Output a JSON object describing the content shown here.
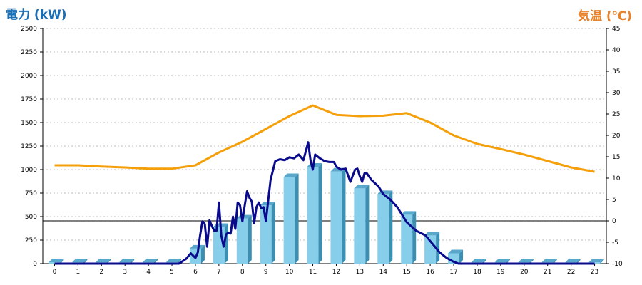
{
  "chart_data": {
    "type": "bar+line",
    "y_left_label": "電力 (kW)",
    "y_right_label": "気温 (℃)",
    "x_ticks": [
      "0",
      "1",
      "2",
      "3",
      "4",
      "5",
      "6",
      "7",
      "8",
      "9",
      "10",
      "11",
      "12",
      "13",
      "14",
      "15",
      "16",
      "17",
      "18",
      "19",
      "20",
      "21",
      "22",
      "23"
    ],
    "y_left_ticks": [
      "0",
      "250",
      "500",
      "750",
      "1000",
      "1250",
      "1500",
      "1750",
      "2000",
      "2250",
      "2500"
    ],
    "y_right_ticks": [
      "-10",
      "-5",
      "0",
      "5",
      "10",
      "15",
      "20",
      "25",
      "30",
      "35",
      "40",
      "45"
    ],
    "ylim_left": [
      0,
      2500
    ],
    "ylim_right": [
      -10,
      45
    ],
    "grid": true,
    "colors": {
      "bars": "#87ceeb",
      "bars_dark": "#3b8fb3",
      "power_line": "#0a0a8c",
      "temp_line": "#f5a00a",
      "left_title": "#1a6fb5",
      "right_title": "#e8822a"
    },
    "series": [
      {
        "kind": "bar",
        "values": [
          15,
          15,
          15,
          15,
          15,
          15,
          160,
          390,
          480,
          620,
          920,
          1030,
          980,
          800,
          740,
          520,
          300,
          110,
          15,
          15,
          15,
          15,
          15,
          15
        ]
      },
      {
        "kind": "line",
        "axis": "left",
        "x": [
          0,
          1,
          2,
          3,
          4,
          5,
          5.3,
          5.6,
          5.8,
          6.0,
          6.1,
          6.2,
          6.3,
          6.4,
          6.5,
          6.6,
          6.7,
          6.8,
          6.9,
          7.0,
          7.1,
          7.2,
          7.3,
          7.4,
          7.5,
          7.6,
          7.7,
          7.8,
          7.9,
          8.0,
          8.1,
          8.2,
          8.3,
          8.4,
          8.5,
          8.6,
          8.7,
          8.8,
          8.9,
          9.0,
          9.2,
          9.4,
          9.6,
          9.8,
          10.0,
          10.2,
          10.4,
          10.6,
          10.8,
          10.9,
          11.0,
          11.1,
          11.3,
          11.5,
          11.7,
          11.9,
          12.0,
          12.2,
          12.4,
          12.6,
          12.8,
          12.9,
          13.0,
          13.1,
          13.2,
          13.3,
          13.5,
          13.8,
          14.0,
          14.3,
          14.6,
          15.0,
          15.4,
          15.8,
          16.0,
          16.4,
          16.7,
          17.0,
          17.2,
          17.5,
          18,
          19,
          20,
          21,
          22,
          23
        ],
        "values": [
          0,
          0,
          0,
          0,
          0,
          0,
          0,
          50,
          110,
          60,
          120,
          300,
          450,
          420,
          180,
          460,
          400,
          350,
          350,
          650,
          300,
          180,
          310,
          330,
          320,
          500,
          370,
          650,
          620,
          450,
          620,
          770,
          700,
          660,
          430,
          600,
          650,
          590,
          600,
          450,
          890,
          1090,
          1110,
          1100,
          1130,
          1120,
          1160,
          1100,
          1290,
          1100,
          1000,
          1160,
          1120,
          1090,
          1080,
          1080,
          1030,
          1000,
          1010,
          870,
          1000,
          1010,
          930,
          870,
          960,
          960,
          890,
          820,
          740,
          680,
          600,
          440,
          350,
          300,
          240,
          120,
          60,
          20,
          0,
          0,
          0,
          0,
          0,
          0,
          0,
          0
        ]
      },
      {
        "kind": "line",
        "axis": "right",
        "x": [
          0,
          1,
          2,
          3,
          4,
          5,
          6,
          7,
          8,
          9,
          10,
          11,
          12,
          13,
          14,
          15,
          16,
          17,
          18,
          19,
          20,
          21,
          22,
          23
        ],
        "values": [
          13,
          13,
          12.7,
          12.5,
          12.2,
          12.2,
          13,
          16,
          18.5,
          21.5,
          24.5,
          27,
          24.8,
          24.5,
          24.6,
          25.2,
          23,
          20,
          18,
          16.8,
          15.5,
          14,
          12.5,
          11.5
        ]
      }
    ]
  }
}
